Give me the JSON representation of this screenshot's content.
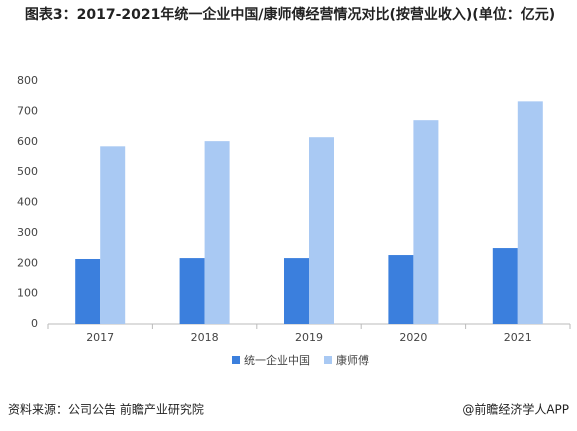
{
  "chart_data": {
    "type": "bar",
    "title": "图表3：2017-2021年统一企业中国/康师傅经营情况对比(按营业收入)(单位：亿元)",
    "categories": [
      "2017",
      "2018",
      "2019",
      "2020",
      "2021"
    ],
    "series": [
      {
        "name": "统一企业中国",
        "color": "#3b7fdd",
        "values": [
          214,
          217,
          217,
          227,
          250
        ]
      },
      {
        "name": "康师傅",
        "color": "#a9c9f3",
        "values": [
          585,
          602,
          615,
          671,
          733
        ]
      }
    ],
    "ylim": [
      0,
      800
    ],
    "yticks": [
      0,
      100,
      200,
      300,
      400,
      500,
      600,
      700,
      800
    ],
    "grid": false,
    "legend": "bottom",
    "source": "资料来源：公司公告 前瞻产业研究院",
    "credit": "@前瞻经济学人APP"
  }
}
